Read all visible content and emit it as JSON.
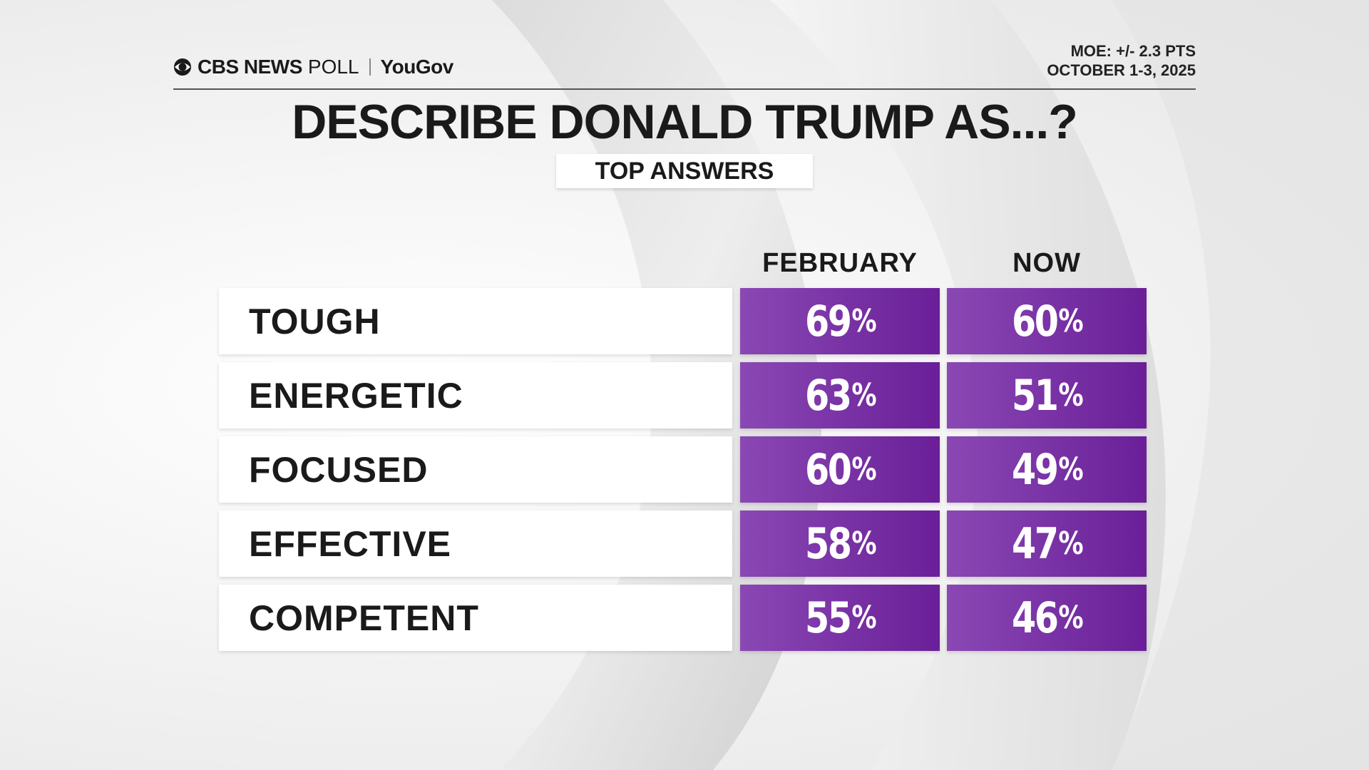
{
  "header": {
    "brand_cbs": "CBS NEWS",
    "brand_poll": "POLL",
    "brand_yougov": "YouGov",
    "moe": "MOE: +/- 2.3 PTS",
    "date": "OCTOBER 1-3, 2025"
  },
  "chart_data": {
    "type": "table",
    "title": "DESCRIBE DONALD TRUMP AS...?",
    "subtitle": "TOP ANSWERS",
    "columns": [
      "FEBRUARY",
      "NOW"
    ],
    "rows": [
      "TOUGH",
      "ENERGETIC",
      "FOCUSED",
      "EFFECTIVE",
      "COMPETENT"
    ],
    "series": [
      {
        "name": "FEBRUARY",
        "values": [
          69,
          63,
          60,
          58,
          55
        ]
      },
      {
        "name": "NOW",
        "values": [
          60,
          51,
          49,
          47,
          46
        ]
      }
    ],
    "unit": "%",
    "colors": {
      "cell_light": "#8a48b4",
      "cell_dark": "#6a1f98",
      "text": "#1a1a1a"
    }
  }
}
